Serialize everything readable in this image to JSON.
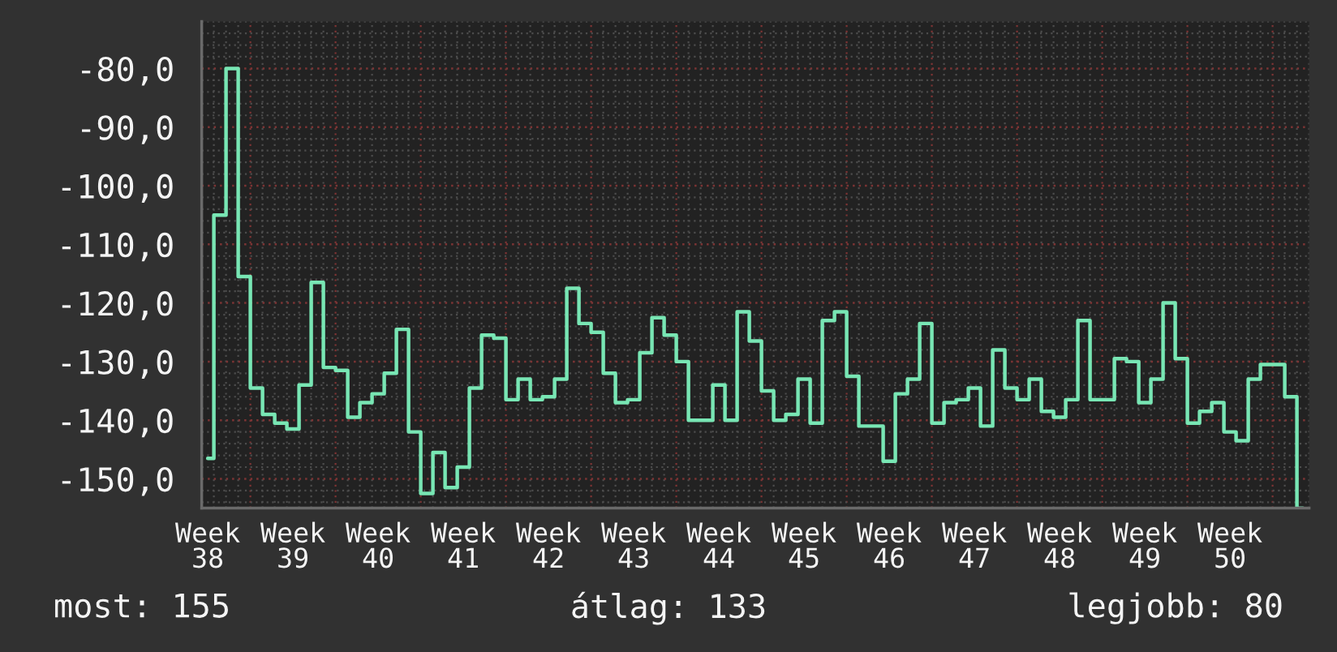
{
  "chart_data": {
    "type": "step",
    "categories": [
      "Week 38",
      null,
      null,
      null,
      null,
      null,
      null,
      "Week 39",
      null,
      null,
      null,
      null,
      null,
      null,
      "Week 40",
      null,
      null,
      null,
      null,
      null,
      null,
      "Week 41",
      null,
      null,
      null,
      null,
      null,
      null,
      "Week 42",
      null,
      null,
      null,
      null,
      null,
      null,
      "Week 43",
      null,
      null,
      null,
      null,
      null,
      null,
      "Week 44",
      null,
      null,
      null,
      null,
      null,
      null,
      "Week 45",
      null,
      null,
      null,
      null,
      null,
      null,
      "Week 46",
      null,
      null,
      null,
      null,
      null,
      null,
      "Week 47",
      null,
      null,
      null,
      null,
      null,
      null,
      "Week 48",
      null,
      null,
      null,
      null,
      null,
      null,
      "Week 49",
      null,
      null,
      null,
      null,
      null,
      null,
      "Week 50",
      null,
      null,
      null,
      null,
      null,
      null
    ],
    "values": [
      -146.5,
      -105,
      -80,
      -115.5,
      -134.5,
      -139,
      -140.5,
      -141.5,
      -134,
      -116.5,
      -131,
      -131.5,
      -139.5,
      -137,
      -135.5,
      -132,
      -124.5,
      -142,
      -152.5,
      -145.5,
      -151.5,
      -148,
      -134.5,
      -125.5,
      -126,
      -136.5,
      -133,
      -136.5,
      -136,
      -133,
      -117.5,
      -123.5,
      -125,
      -132,
      -137,
      -136.5,
      -128.5,
      -122.5,
      -125.5,
      -130,
      -140,
      -140,
      -134,
      -140,
      -121.5,
      -126.5,
      -135,
      -140,
      -139,
      -133,
      -140.5,
      -123,
      -121.5,
      -132.5,
      -141,
      -141,
      -147,
      -135.5,
      -133,
      -123.5,
      -140.5,
      -137,
      -136.5,
      -134.5,
      -141,
      -128,
      -134.5,
      -136.5,
      -133,
      -138.5,
      -139.5,
      -136.5,
      -123,
      -136.5,
      -136.5,
      -129.5,
      -130,
      -137,
      -133,
      -120,
      -129.5,
      -140.5,
      -138.5,
      -137,
      -142,
      -143.5,
      -133,
      -130.5,
      -130.5,
      -136,
      -155
    ],
    "color": "#78e6b4",
    "ylim": [
      -155,
      -72
    ],
    "yticks": [
      {
        "value": -150,
        "label": "-150,0"
      },
      {
        "value": -140,
        "label": "-140,0"
      },
      {
        "value": -130,
        "label": "-130,0"
      },
      {
        "value": -120,
        "label": "-120,0"
      },
      {
        "value": -110,
        "label": "-110,0"
      },
      {
        "value": -100,
        "label": "-100,0"
      },
      {
        "value": -90,
        "label": "-90,0"
      },
      {
        "value": -80,
        "label": "-80,0"
      }
    ],
    "grid": true,
    "annotations": [
      "most: 155",
      "átlag: 133",
      "legjobb: 80"
    ]
  }
}
